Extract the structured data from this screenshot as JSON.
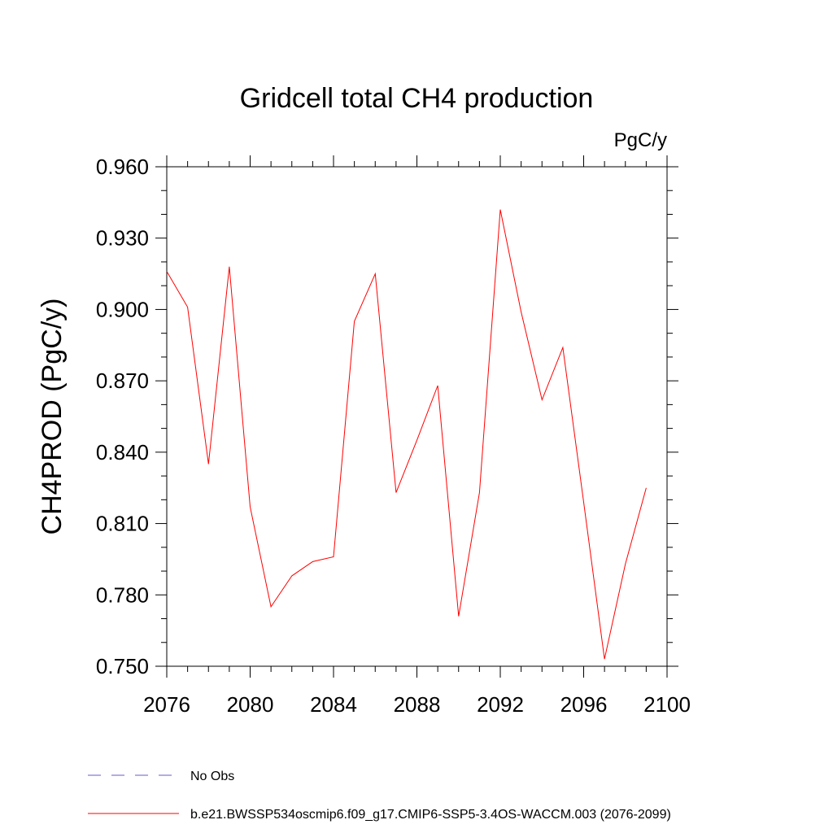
{
  "chart_data": {
    "type": "line",
    "title": "Gridcell total CH4 production",
    "units": "PgC/y",
    "xlabel": "",
    "ylabel": "CH4PROD  (PgC/y)",
    "xlim": [
      2076,
      2100
    ],
    "ylim": [
      0.75,
      0.96
    ],
    "x_ticks": [
      2076,
      2080,
      2084,
      2088,
      2092,
      2096,
      2100
    ],
    "x_tick_labels": [
      "2076",
      "2080",
      "2084",
      "2088",
      "2092",
      "2096",
      "2100"
    ],
    "y_ticks": [
      0.75,
      0.78,
      0.81,
      0.84,
      0.87,
      0.9,
      0.93,
      0.96
    ],
    "y_tick_labels": [
      "0.750",
      "0.780",
      "0.810",
      "0.840",
      "0.870",
      "0.900",
      "0.930",
      "0.960"
    ],
    "grid": false,
    "legend_position": "bottom-left",
    "series": [
      {
        "name": "b.e21.BWSSP534oscmip6.f09_g17.CMIP6-SSP5-3.4OS-WACCM.003 (2076-2099)",
        "color": "#ff0000",
        "style": "solid",
        "x": [
          2076,
          2077,
          2078,
          2079,
          2080,
          2081,
          2082,
          2083,
          2084,
          2085,
          2086,
          2087,
          2088,
          2089,
          2090,
          2091,
          2092,
          2093,
          2094,
          2095,
          2096,
          2097,
          2098,
          2099
        ],
        "y": [
          0.916,
          0.901,
          0.835,
          0.918,
          0.817,
          0.775,
          0.788,
          0.794,
          0.796,
          0.895,
          0.915,
          0.823,
          0.845,
          0.868,
          0.771,
          0.823,
          0.942,
          0.899,
          0.862,
          0.884,
          0.819,
          0.753,
          0.793,
          0.825
        ]
      }
    ],
    "legend": [
      {
        "label": "No Obs",
        "color": "#6a5acd",
        "style": "dashed"
      },
      {
        "label": "b.e21.BWSSP534oscmip6.f09_g17.CMIP6-SSP5-3.4OS-WACCM.003 (2076-2099)",
        "color": "#ff0000",
        "style": "solid"
      }
    ]
  }
}
